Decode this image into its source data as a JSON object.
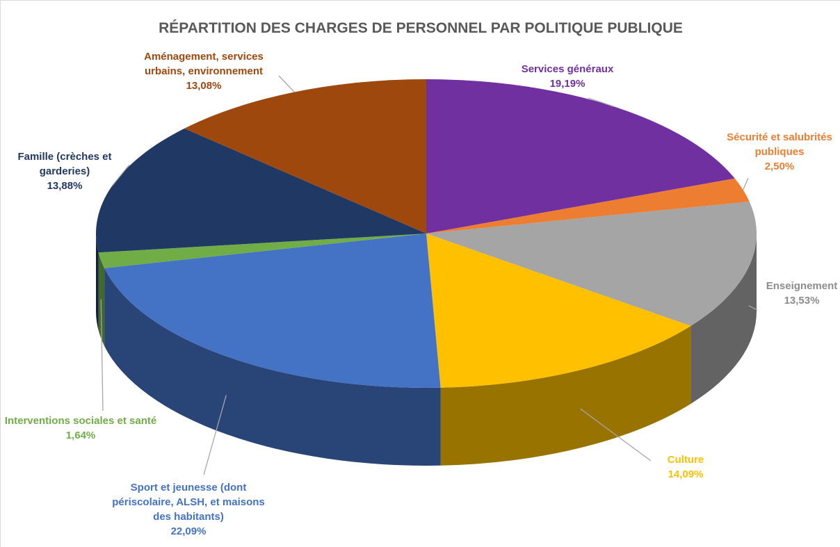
{
  "chart_data": {
    "type": "pie3d",
    "title": "RÉPARTITION DES CHARGES DE PERSONNEL PAR POLITIQUE PUBLIQUE",
    "categories": [
      "Services généraux",
      "Sécurité et salubrités publiques",
      "Enseignement",
      "Culture",
      "Sport et jeunesse (dont périscolaire, ALSH, et maisons des habitants)",
      "Interventions sociales et santé",
      "Famille (crèches et garderies)",
      "Aménagement, services urbains, environnement"
    ],
    "values": [
      19.19,
      2.5,
      13.53,
      14.09,
      22.09,
      1.64,
      13.88,
      13.08
    ],
    "value_labels": [
      "19,19%",
      "2,50%",
      "13,53%",
      "14,09%",
      "22,09%",
      "1,64%",
      "13,88%",
      "13,08%"
    ],
    "colors": [
      "#7030a0",
      "#ed7d31",
      "#a5a5a5",
      "#ffc000",
      "#4472c4",
      "#70ad47",
      "#203864",
      "#9e480e"
    ]
  }
}
